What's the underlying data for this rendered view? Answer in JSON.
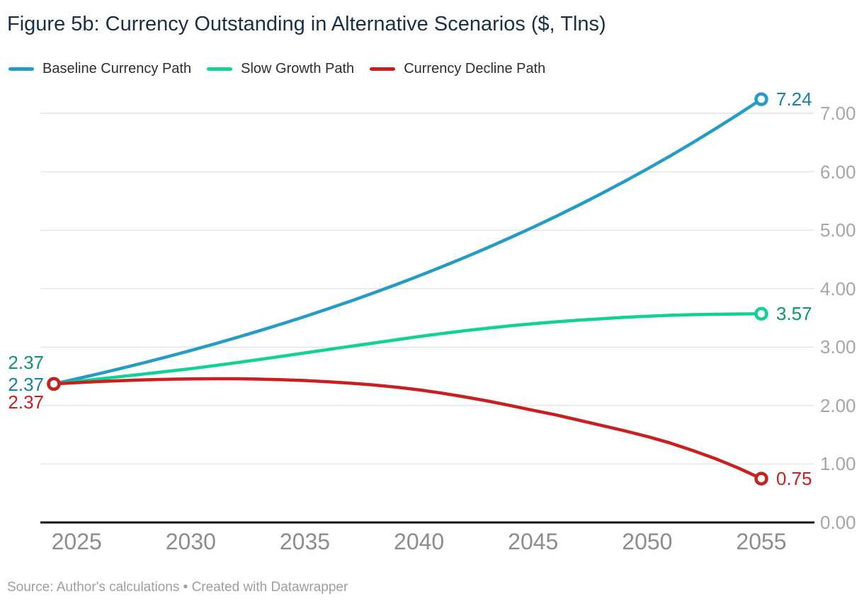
{
  "title": "Figure 5b: Currency Outstanding in Alternative Scenarios ($, Tlns)",
  "footer": "Source: Author's calculations • Created with Datawrapper",
  "colors": {
    "title": "#1a3044",
    "legend_text": "#2e2e2e",
    "x_tick": "#8d8d8d",
    "y_tick": "#a6a6a6",
    "grid": "#e4e4e4",
    "axis": "#141414",
    "footer": "#9e9e9e",
    "background": "#ffffff"
  },
  "chart_data": {
    "type": "line",
    "title": "Figure 5b: Currency Outstanding in Alternative Scenarios ($, Tlns)",
    "xlabel": "",
    "ylabel": "",
    "xlim": [
      2024,
      2055
    ],
    "ylim": [
      0,
      7.4
    ],
    "grid": "horizontal",
    "legend_position": "top",
    "y_axis_side": "right",
    "x_ticks": [
      {
        "value": 2025,
        "label": "2025"
      },
      {
        "value": 2030,
        "label": "2030"
      },
      {
        "value": 2035,
        "label": "2035"
      },
      {
        "value": 2040,
        "label": "2040"
      },
      {
        "value": 2045,
        "label": "2045"
      },
      {
        "value": 2050,
        "label": "2050"
      },
      {
        "value": 2055,
        "label": "2055"
      }
    ],
    "y_ticks": [
      {
        "value": 0,
        "label": "0.00"
      },
      {
        "value": 1,
        "label": "1.00"
      },
      {
        "value": 2,
        "label": "2.00"
      },
      {
        "value": 3,
        "label": "3.00"
      },
      {
        "value": 4,
        "label": "4.00"
      },
      {
        "value": 5,
        "label": "5.00"
      },
      {
        "value": 6,
        "label": "6.00"
      },
      {
        "value": 7,
        "label": "7.00"
      }
    ],
    "x": [
      2024,
      2025,
      2026,
      2027,
      2028,
      2029,
      2030,
      2031,
      2032,
      2033,
      2034,
      2035,
      2036,
      2037,
      2038,
      2039,
      2040,
      2041,
      2042,
      2043,
      2044,
      2045,
      2046,
      2047,
      2048,
      2049,
      2050,
      2051,
      2052,
      2053,
      2054,
      2055
    ],
    "series": [
      {
        "name": "Baseline Currency Path",
        "line_color": "#259bc8",
        "label_color": "#1681b0",
        "start_label": "2.37",
        "end_label": "7.24",
        "start_value": 2.37,
        "end_value": 7.24,
        "values": [
          2.37,
          2.457,
          2.547,
          2.641,
          2.737,
          2.838,
          2.942,
          3.05,
          3.162,
          3.278,
          3.398,
          3.523,
          3.652,
          3.786,
          3.925,
          4.069,
          4.218,
          4.373,
          4.533,
          4.699,
          4.872,
          5.05,
          5.236,
          5.428,
          5.627,
          5.833,
          6.047,
          6.269,
          6.499,
          6.737,
          6.984,
          7.24
        ]
      },
      {
        "name": "Slow Growth Path",
        "line_color": "#10d296",
        "label_color": "#0c9a62",
        "start_label": "2.37",
        "end_label": "3.57",
        "start_value": 2.37,
        "end_value": 3.57,
        "values": [
          2.37,
          2.413,
          2.456,
          2.499,
          2.542,
          2.586,
          2.63,
          2.681,
          2.733,
          2.787,
          2.843,
          2.9,
          2.957,
          3.013,
          3.069,
          3.125,
          3.18,
          3.231,
          3.279,
          3.323,
          3.363,
          3.4,
          3.432,
          3.461,
          3.486,
          3.509,
          3.528,
          3.543,
          3.554,
          3.562,
          3.567,
          3.57
        ]
      },
      {
        "name": "Currency Decline Path",
        "line_color": "#c9201f",
        "label_color": "#c9201f",
        "start_label": "2.37",
        "end_label": "0.75",
        "start_value": 2.37,
        "end_value": 0.75,
        "values": [
          2.37,
          2.392,
          2.411,
          2.427,
          2.44,
          2.45,
          2.456,
          2.459,
          2.458,
          2.452,
          2.442,
          2.428,
          2.408,
          2.383,
          2.352,
          2.314,
          2.27,
          2.213,
          2.149,
          2.078,
          2.001,
          1.918,
          1.84,
          1.75,
          1.66,
          1.57,
          1.47,
          1.36,
          1.23,
          1.09,
          0.93,
          0.75
        ]
      }
    ]
  }
}
